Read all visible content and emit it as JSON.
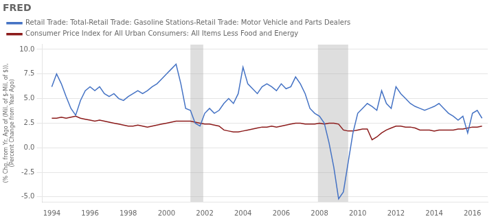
{
  "chart_data": {
    "type": "line",
    "title": "FRED",
    "y_label": "(% Chg. from Yr. Ago of (Mil. of $-Mil. of $)),\n(Percent Change from Year Ago)",
    "legend": "top",
    "grid": true,
    "xlim": [
      1993.5,
      2016.8
    ],
    "xticks": [
      1994,
      1996,
      1998,
      2000,
      2002,
      2004,
      2006,
      2008,
      2010,
      2012,
      2014,
      2016
    ],
    "ylim": [
      -5.5,
      10.5
    ],
    "yticks": [
      {
        "value": -5.0,
        "label": "-5.0"
      },
      {
        "value": -2.5,
        "label": "-2.5"
      },
      {
        "value": 0.0,
        "label": "0.0"
      },
      {
        "value": 2.5,
        "label": "2.5"
      },
      {
        "value": 5.0,
        "label": "5.0"
      },
      {
        "value": 7.5,
        "label": "7.5"
      },
      {
        "value": 10.0,
        "label": "10.0"
      }
    ],
    "recession_bands": [
      [
        2001.25,
        2001.92
      ],
      [
        2007.92,
        2009.5
      ]
    ],
    "x": [
      1994.0,
      1994.25,
      1994.5,
      1994.75,
      1995.0,
      1995.25,
      1995.5,
      1995.75,
      1996.0,
      1996.25,
      1996.5,
      1996.75,
      1997.0,
      1997.25,
      1997.5,
      1997.75,
      1998.0,
      1998.25,
      1998.5,
      1998.75,
      1999.0,
      1999.25,
      1999.5,
      1999.75,
      2000.0,
      2000.25,
      2000.5,
      2000.75,
      2001.0,
      2001.25,
      2001.5,
      2001.75,
      2002.0,
      2002.25,
      2002.5,
      2002.75,
      2003.0,
      2003.25,
      2003.5,
      2003.75,
      2004.0,
      2004.25,
      2004.5,
      2004.75,
      2005.0,
      2005.25,
      2005.5,
      2005.75,
      2006.0,
      2006.25,
      2006.5,
      2006.75,
      2007.0,
      2007.25,
      2007.5,
      2007.75,
      2008.0,
      2008.25,
      2008.5,
      2008.75,
      2009.0,
      2009.25,
      2009.5,
      2009.75,
      2010.0,
      2010.25,
      2010.5,
      2010.75,
      2011.0,
      2011.25,
      2011.5,
      2011.75,
      2012.0,
      2012.25,
      2012.5,
      2012.75,
      2013.0,
      2013.25,
      2013.5,
      2013.75,
      2014.0,
      2014.25,
      2014.5,
      2014.75,
      2015.0,
      2015.25,
      2015.5,
      2015.75,
      2016.0,
      2016.25,
      2016.5
    ],
    "series": [
      {
        "name": "Retail Trade: Total-Retail Trade: Gasoline Stations-Retail Trade: Motor Vehicle and Parts Dealers",
        "color": "#4472c4",
        "values": [
          6.2,
          7.5,
          6.5,
          5.2,
          4.0,
          3.3,
          4.8,
          5.8,
          6.2,
          5.8,
          6.2,
          5.5,
          5.2,
          5.5,
          5.0,
          4.8,
          5.2,
          5.5,
          5.8,
          5.5,
          5.8,
          6.2,
          6.5,
          7.0,
          7.5,
          8.0,
          8.5,
          6.5,
          4.0,
          3.8,
          2.5,
          2.2,
          3.5,
          4.0,
          3.5,
          3.8,
          4.5,
          5.0,
          4.5,
          5.5,
          8.2,
          6.5,
          6.0,
          5.5,
          6.2,
          6.5,
          6.2,
          5.8,
          6.5,
          6.0,
          6.2,
          7.2,
          6.5,
          5.5,
          4.0,
          3.5,
          3.2,
          2.5,
          0.5,
          -2.0,
          -5.2,
          -4.5,
          -1.5,
          1.5,
          3.5,
          4.0,
          4.5,
          4.2,
          3.8,
          5.8,
          4.5,
          4.0,
          6.2,
          5.5,
          5.0,
          4.5,
          4.2,
          4.0,
          3.8,
          4.0,
          4.2,
          4.5,
          4.0,
          3.5,
          3.2,
          2.8,
          3.2,
          1.5,
          3.5,
          3.8,
          3.0
        ]
      },
      {
        "name": "Consumer Price Index for All Urban Consumers: All Items Less Food and Energy",
        "color": "#8b1a1a",
        "values": [
          3.0,
          3.0,
          3.1,
          3.0,
          3.1,
          3.2,
          3.0,
          2.9,
          2.8,
          2.7,
          2.8,
          2.7,
          2.6,
          2.5,
          2.4,
          2.3,
          2.2,
          2.2,
          2.3,
          2.2,
          2.1,
          2.2,
          2.3,
          2.4,
          2.5,
          2.6,
          2.7,
          2.7,
          2.7,
          2.7,
          2.6,
          2.5,
          2.4,
          2.4,
          2.3,
          2.2,
          1.8,
          1.7,
          1.6,
          1.6,
          1.7,
          1.8,
          1.9,
          2.0,
          2.1,
          2.1,
          2.2,
          2.1,
          2.2,
          2.3,
          2.4,
          2.5,
          2.5,
          2.4,
          2.4,
          2.4,
          2.5,
          2.4,
          2.5,
          2.5,
          2.4,
          1.8,
          1.7,
          1.7,
          1.8,
          1.9,
          1.9,
          0.8,
          1.1,
          1.5,
          1.8,
          2.0,
          2.2,
          2.2,
          2.1,
          2.1,
          2.0,
          1.8,
          1.8,
          1.8,
          1.7,
          1.8,
          1.8,
          1.8,
          1.8,
          1.9,
          1.9,
          2.0,
          2.1,
          2.1,
          2.2
        ]
      }
    ]
  }
}
